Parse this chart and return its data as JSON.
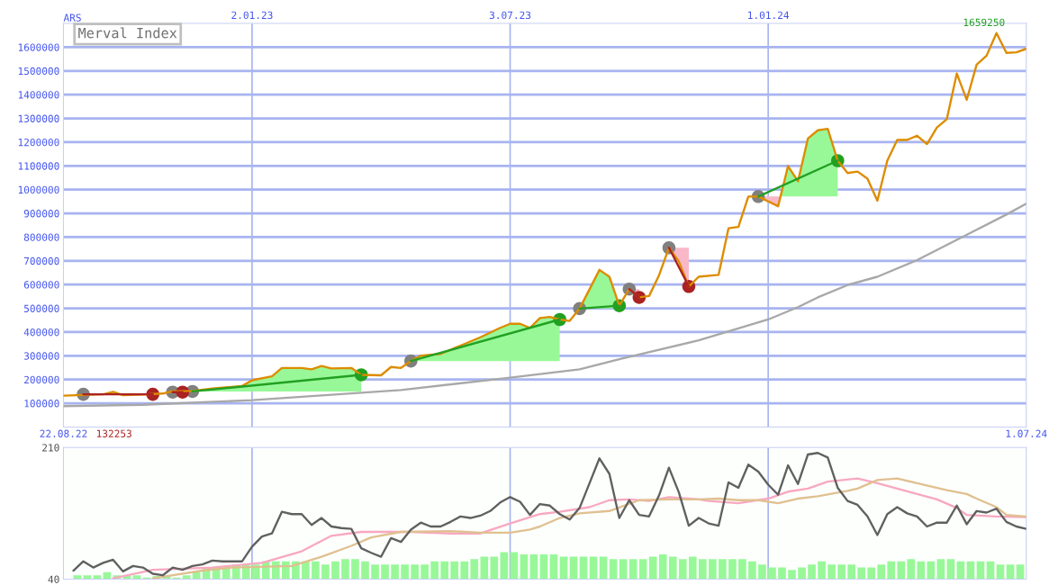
{
  "chart_data": [
    {
      "type": "line",
      "title": "Merval Index",
      "ylabel": "ARS",
      "xlim": [
        "2022-08-22",
        "2024-07-01"
      ],
      "x2lim": [
        "2022-08-22",
        "2024-07-01"
      ],
      "xticks": [
        {
          "value": "2022-08-22",
          "label": "22.08.22"
        },
        {
          "value": "2024-07-01",
          "label": "1.07.24"
        }
      ],
      "x2ticks": [
        {
          "value": "2023-01-02",
          "label": "2.01.23"
        },
        {
          "value": "2023-07-03",
          "label": "3.07.23"
        },
        {
          "value": "2024-01-01",
          "label": "1.01.24"
        }
      ],
      "ylim": [
        0,
        1700000
      ],
      "yticks": [
        100000,
        200000,
        300000,
        400000,
        500000,
        600000,
        700000,
        800000,
        900000,
        1000000,
        1100000,
        1200000,
        1300000,
        1400000,
        1500000,
        1600000
      ],
      "grid": true,
      "annotations": [
        "132253",
        {
          "text": "1659250",
          "x": "2024-06-10",
          "y": 1659250
        }
      ],
      "series": [
        {
          "color": "#a8a8a8",
          "x": [
            "2022-08-22",
            "2022-10-17",
            "2023-01-02",
            "2023-04-17",
            "2023-07-03",
            "2023-08-21",
            "2023-09-18",
            "2023-11-13",
            "2024-01-01",
            "2024-01-22",
            "2024-02-05",
            "2024-02-26",
            "2024-03-18",
            "2024-04-15",
            "2024-05-27",
            "2024-06-17",
            "2024-07-01"
          ],
          "values": [
            88000,
            94000,
            113000,
            156000,
            208000,
            243000,
            286000,
            365000,
            453000,
            505000,
            546000,
            598000,
            633000,
            703000,
            831000,
            895000,
            941000
          ]
        },
        {
          "color": "#dd8c00",
          "x": [
            "2022-08-22",
            "2022-09-19",
            "2022-09-26",
            "2022-10-03",
            "2022-10-17",
            "2022-10-31",
            "2022-11-07",
            "2022-11-21",
            "2022-12-05",
            "2022-12-26",
            "2023-01-02",
            "2023-01-16",
            "2023-01-23",
            "2023-02-06",
            "2023-02-13",
            "2023-02-20",
            "2023-02-27",
            "2023-03-13",
            "2023-03-20",
            "2023-04-03",
            "2023-04-10",
            "2023-04-17",
            "2023-04-24",
            "2023-05-01",
            "2023-05-15",
            "2023-05-29",
            "2023-06-12",
            "2023-06-26",
            "2023-07-03",
            "2023-07-10",
            "2023-07-17",
            "2023-07-24",
            "2023-07-31",
            "2023-08-07",
            "2023-08-14",
            "2023-08-21",
            "2023-09-04",
            "2023-09-11",
            "2023-09-18",
            "2023-09-25",
            "2023-10-02",
            "2023-10-09",
            "2023-10-16",
            "2023-10-23",
            "2023-10-30",
            "2023-11-06",
            "2023-11-13",
            "2023-11-27",
            "2023-12-04",
            "2023-12-11",
            "2023-12-18",
            "2023-12-25",
            "2024-01-08",
            "2024-01-15",
            "2024-01-22",
            "2024-01-29",
            "2024-02-05",
            "2024-02-12",
            "2024-02-19",
            "2024-02-26",
            "2024-03-04",
            "2024-03-11",
            "2024-03-18",
            "2024-03-25",
            "2024-04-01",
            "2024-04-08",
            "2024-04-15",
            "2024-04-22",
            "2024-04-29",
            "2024-05-06",
            "2024-05-13",
            "2024-05-20",
            "2024-05-27",
            "2024-06-03",
            "2024-06-10",
            "2024-06-17",
            "2024-06-24",
            "2024-07-01"
          ],
          "values": [
            132253,
            138000,
            148000,
            134000,
            137000,
            141000,
            151000,
            152000,
            162000,
            173000,
            197000,
            214000,
            249000,
            249000,
            243000,
            257000,
            247000,
            249000,
            220000,
            218000,
            253000,
            249000,
            278000,
            301000,
            308000,
            343000,
            378000,
            418000,
            435000,
            435000,
            418000,
            459000,
            464000,
            453000,
            447000,
            499000,
            662000,
            633000,
            511000,
            581000,
            546000,
            552000,
            639000,
            755000,
            697000,
            592000,
            633000,
            641000,
            837000,
            843000,
            971000,
            971000,
            930000,
            1099000,
            1035000,
            1215000,
            1250000,
            1256000,
            1122000,
            1070000,
            1076000,
            1046000,
            953000,
            1122000,
            1209000,
            1209000,
            1227000,
            1192000,
            1262000,
            1297000,
            1489000,
            1378000,
            1526000,
            1564000,
            1659250,
            1576000,
            1578000,
            1593000
          ]
        },
        {
          "type": "line",
          "color": "#aa2222",
          "x": [
            "2022-09-05",
            "2022-10-24"
          ],
          "values": [
            138000,
            138000
          ]
        },
        {
          "type": "line",
          "color": "#aa2222",
          "x": [
            "2022-11-07",
            "2022-11-14"
          ],
          "values": [
            147000,
            147000
          ]
        },
        {
          "type": "line",
          "color": "#22a022",
          "x": [
            "2022-11-21",
            "2023-03-20"
          ],
          "values": [
            150000,
            220000
          ]
        },
        {
          "type": "line",
          "color": "#22a022",
          "x": [
            "2023-04-24",
            "2023-08-07"
          ],
          "values": [
            278000,
            453000
          ]
        },
        {
          "type": "line",
          "color": "#22a022",
          "x": [
            "2023-08-21",
            "2023-09-18"
          ],
          "values": [
            499000,
            511000
          ]
        },
        {
          "type": "line",
          "color": "#aa2222",
          "x": [
            "2023-09-25",
            "2023-10-02"
          ],
          "values": [
            581000,
            546000
          ]
        },
        {
          "type": "line",
          "color": "#aa2222",
          "x": [
            "2023-10-23",
            "2023-11-06"
          ],
          "values": [
            755000,
            592000
          ]
        },
        {
          "type": "line",
          "color": "#22a022",
          "x": [
            "2023-12-25",
            "2024-02-19"
          ],
          "values": [
            971000,
            1122000
          ]
        },
        {
          "type": "scatter",
          "marker": "circle",
          "color": "#808080",
          "x": [
            "2022-09-05",
            "2022-11-07",
            "2022-11-21",
            "2023-04-24",
            "2023-08-21",
            "2023-09-25",
            "2023-10-23",
            "2023-12-25"
          ],
          "values": [
            138000,
            147000,
            150000,
            278000,
            499000,
            581000,
            755000,
            971000
          ]
        },
        {
          "type": "scatter",
          "marker": "circle",
          "color": "#22a022",
          "x": [
            "2023-03-20",
            "2023-08-07",
            "2023-09-18",
            "2024-02-19"
          ],
          "values": [
            220000,
            453000,
            511000,
            1122000
          ]
        },
        {
          "type": "scatter",
          "marker": "circle",
          "color": "#aa2222",
          "x": [
            "2022-10-24",
            "2022-11-14",
            "2023-10-02",
            "2023-11-06"
          ],
          "values": [
            138000,
            147000,
            546000,
            592000
          ]
        }
      ]
    },
    {
      "type": "line",
      "xlim": [
        "2022-08-22",
        "2024-07-01"
      ],
      "ylim": [
        40,
        210
      ],
      "yticks": [
        40,
        210
      ],
      "ref_lines": [
        {
          "axis": "x",
          "value": "2023-01-02",
          "color": "#a8b4f0"
        },
        {
          "axis": "x",
          "value": "2023-07-03",
          "color": "#a8b4f0"
        },
        {
          "axis": "x",
          "value": "2024-01-01",
          "color": "#a8b4f0"
        }
      ],
      "x": [
        "2022-08-29",
        "2022-09-05",
        "2022-09-12",
        "2022-09-19",
        "2022-09-26",
        "2022-10-03",
        "2022-10-10",
        "2022-10-17",
        "2022-10-24",
        "2022-10-31",
        "2022-11-07",
        "2022-11-14",
        "2022-11-21",
        "2022-11-28",
        "2022-12-05",
        "2022-12-12",
        "2022-12-19",
        "2022-12-26",
        "2023-01-02",
        "2023-01-09",
        "2023-01-16",
        "2023-01-23",
        "2023-01-30",
        "2023-02-06",
        "2023-02-13",
        "2023-02-20",
        "2023-02-27",
        "2023-03-06",
        "2023-03-13",
        "2023-03-20",
        "2023-03-27",
        "2023-04-03",
        "2023-04-10",
        "2023-04-17",
        "2023-04-24",
        "2023-05-01",
        "2023-05-08",
        "2023-05-15",
        "2023-05-22",
        "2023-05-29",
        "2023-06-05",
        "2023-06-12",
        "2023-06-19",
        "2023-06-26",
        "2023-07-03",
        "2023-07-10",
        "2023-07-17",
        "2023-07-24",
        "2023-07-31",
        "2023-08-07",
        "2023-08-14",
        "2023-08-21",
        "2023-08-28",
        "2023-09-04",
        "2023-09-11",
        "2023-09-18",
        "2023-09-25",
        "2023-10-02",
        "2023-10-09",
        "2023-10-16",
        "2023-10-23",
        "2023-10-30",
        "2023-11-06",
        "2023-11-13",
        "2023-11-20",
        "2023-11-27",
        "2023-12-04",
        "2023-12-11",
        "2023-12-18",
        "2023-12-25",
        "2024-01-01",
        "2024-01-08",
        "2024-01-15",
        "2024-01-22",
        "2024-01-29",
        "2024-02-05",
        "2024-02-12",
        "2024-02-19",
        "2024-02-26",
        "2024-03-04",
        "2024-03-11",
        "2024-03-18",
        "2024-03-25",
        "2024-04-01",
        "2024-04-08",
        "2024-04-15",
        "2024-04-22",
        "2024-04-29",
        "2024-05-06",
        "2024-05-13",
        "2024-05-20",
        "2024-05-27",
        "2024-06-03",
        "2024-06-10",
        "2024-06-17",
        "2024-06-24",
        "2024-07-01"
      ],
      "series": [
        {
          "type": "bar",
          "color": "#98f898",
          "values": [
            45,
            45,
            45,
            49,
            45,
            45,
            45,
            42,
            44,
            44,
            42,
            45,
            49,
            55,
            55,
            55,
            59,
            59,
            59,
            63,
            63,
            63,
            63,
            63,
            63,
            59,
            63,
            66,
            66,
            63,
            59,
            59,
            59,
            59,
            59,
            59,
            63,
            63,
            63,
            63,
            66,
            69,
            69,
            75,
            75,
            72,
            72,
            72,
            72,
            69,
            69,
            69,
            69,
            69,
            66,
            66,
            66,
            66,
            69,
            72,
            69,
            66,
            69,
            66,
            66,
            66,
            66,
            66,
            63,
            59,
            55,
            55,
            52,
            55,
            59,
            63,
            59,
            59,
            59,
            55,
            55,
            59,
            63,
            63,
            66,
            63,
            63,
            66,
            66,
            63,
            63,
            63,
            63,
            59,
            59,
            59,
            null
          ]
        },
        {
          "color": "#f8a8c0",
          "x": [
            "2022-09-26",
            "2022-10-24",
            "2022-12-05",
            "2023-01-09",
            "2023-02-06",
            "2023-02-27",
            "2023-03-20",
            "2023-04-24",
            "2023-05-22",
            "2023-06-12",
            "2023-07-03",
            "2023-07-24",
            "2023-08-07",
            "2023-08-28",
            "2023-09-11",
            "2023-09-25",
            "2023-10-09",
            "2023-10-23",
            "2023-11-13",
            "2023-11-20",
            "2023-12-11",
            "2024-01-01",
            "2024-01-15",
            "2024-01-29",
            "2024-02-12",
            "2024-03-04",
            "2024-03-18",
            "2024-04-01",
            "2024-04-15",
            "2024-04-29",
            "2024-05-13",
            "2024-05-20",
            "2024-06-10",
            "2024-07-01"
          ],
          "values": [
            41,
            52,
            55,
            61,
            76,
            96,
            101,
            101,
            99,
            99,
            112,
            124,
            127,
            133,
            142,
            143,
            141,
            146,
            143,
            141,
            138,
            144,
            153,
            157,
            166,
            170,
            164,
            157,
            150,
            143,
            132,
            123,
            121,
            120
          ]
        },
        {
          "color": "#e0c090",
          "x": [
            "2022-10-24",
            "2022-11-28",
            "2022-12-19",
            "2023-01-30",
            "2023-02-20",
            "2023-03-13",
            "2023-03-27",
            "2023-04-17",
            "2023-05-22",
            "2023-06-12",
            "2023-07-03",
            "2023-07-17",
            "2023-07-24",
            "2023-08-07",
            "2023-08-21",
            "2023-09-11",
            "2023-10-02",
            "2023-10-23",
            "2023-11-13",
            "2023-11-27",
            "2023-12-11",
            "2023-12-25",
            "2024-01-08",
            "2024-01-22",
            "2024-02-05",
            "2024-02-26",
            "2024-03-04",
            "2024-03-18",
            "2024-04-01",
            "2024-04-15",
            "2024-05-06",
            "2024-05-20",
            "2024-05-27",
            "2024-06-10",
            "2024-06-17",
            "2024-07-01"
          ],
          "values": [
            41,
            51,
            55,
            57,
            69,
            83,
            94,
            101,
            102,
            100,
            100,
            104,
            108,
            119,
            125,
            128,
            142,
            143,
            143,
            144,
            142,
            142,
            138,
            144,
            147,
            154,
            157,
            168,
            170,
            164,
            155,
            150,
            144,
            133,
            123,
            121
          ]
        },
        {
          "color": "#606060",
          "values": [
            51,
            63,
            55,
            61,
            65,
            50,
            57,
            55,
            47,
            45,
            55,
            52,
            57,
            59,
            64,
            63,
            63,
            63,
            82,
            95,
            99,
            127,
            124,
            124,
            110,
            119,
            108,
            106,
            105,
            80,
            74,
            69,
            93,
            88,
            104,
            113,
            108,
            108,
            114,
            121,
            119,
            122,
            128,
            139,
            146,
            140,
            123,
            137,
            135,
            124,
            117,
            132,
            164,
            196,
            176,
            119,
            142,
            123,
            121,
            148,
            184,
            152,
            109,
            119,
            112,
            109,
            165,
            158,
            188,
            179,
            162,
            149,
            187,
            163,
            201,
            203,
            197,
            158,
            141,
            136,
            121,
            97,
            124,
            133,
            125,
            121,
            108,
            113,
            113,
            135,
            111,
            128,
            126,
            131,
            114,
            108,
            105
          ]
        }
      ]
    }
  ]
}
